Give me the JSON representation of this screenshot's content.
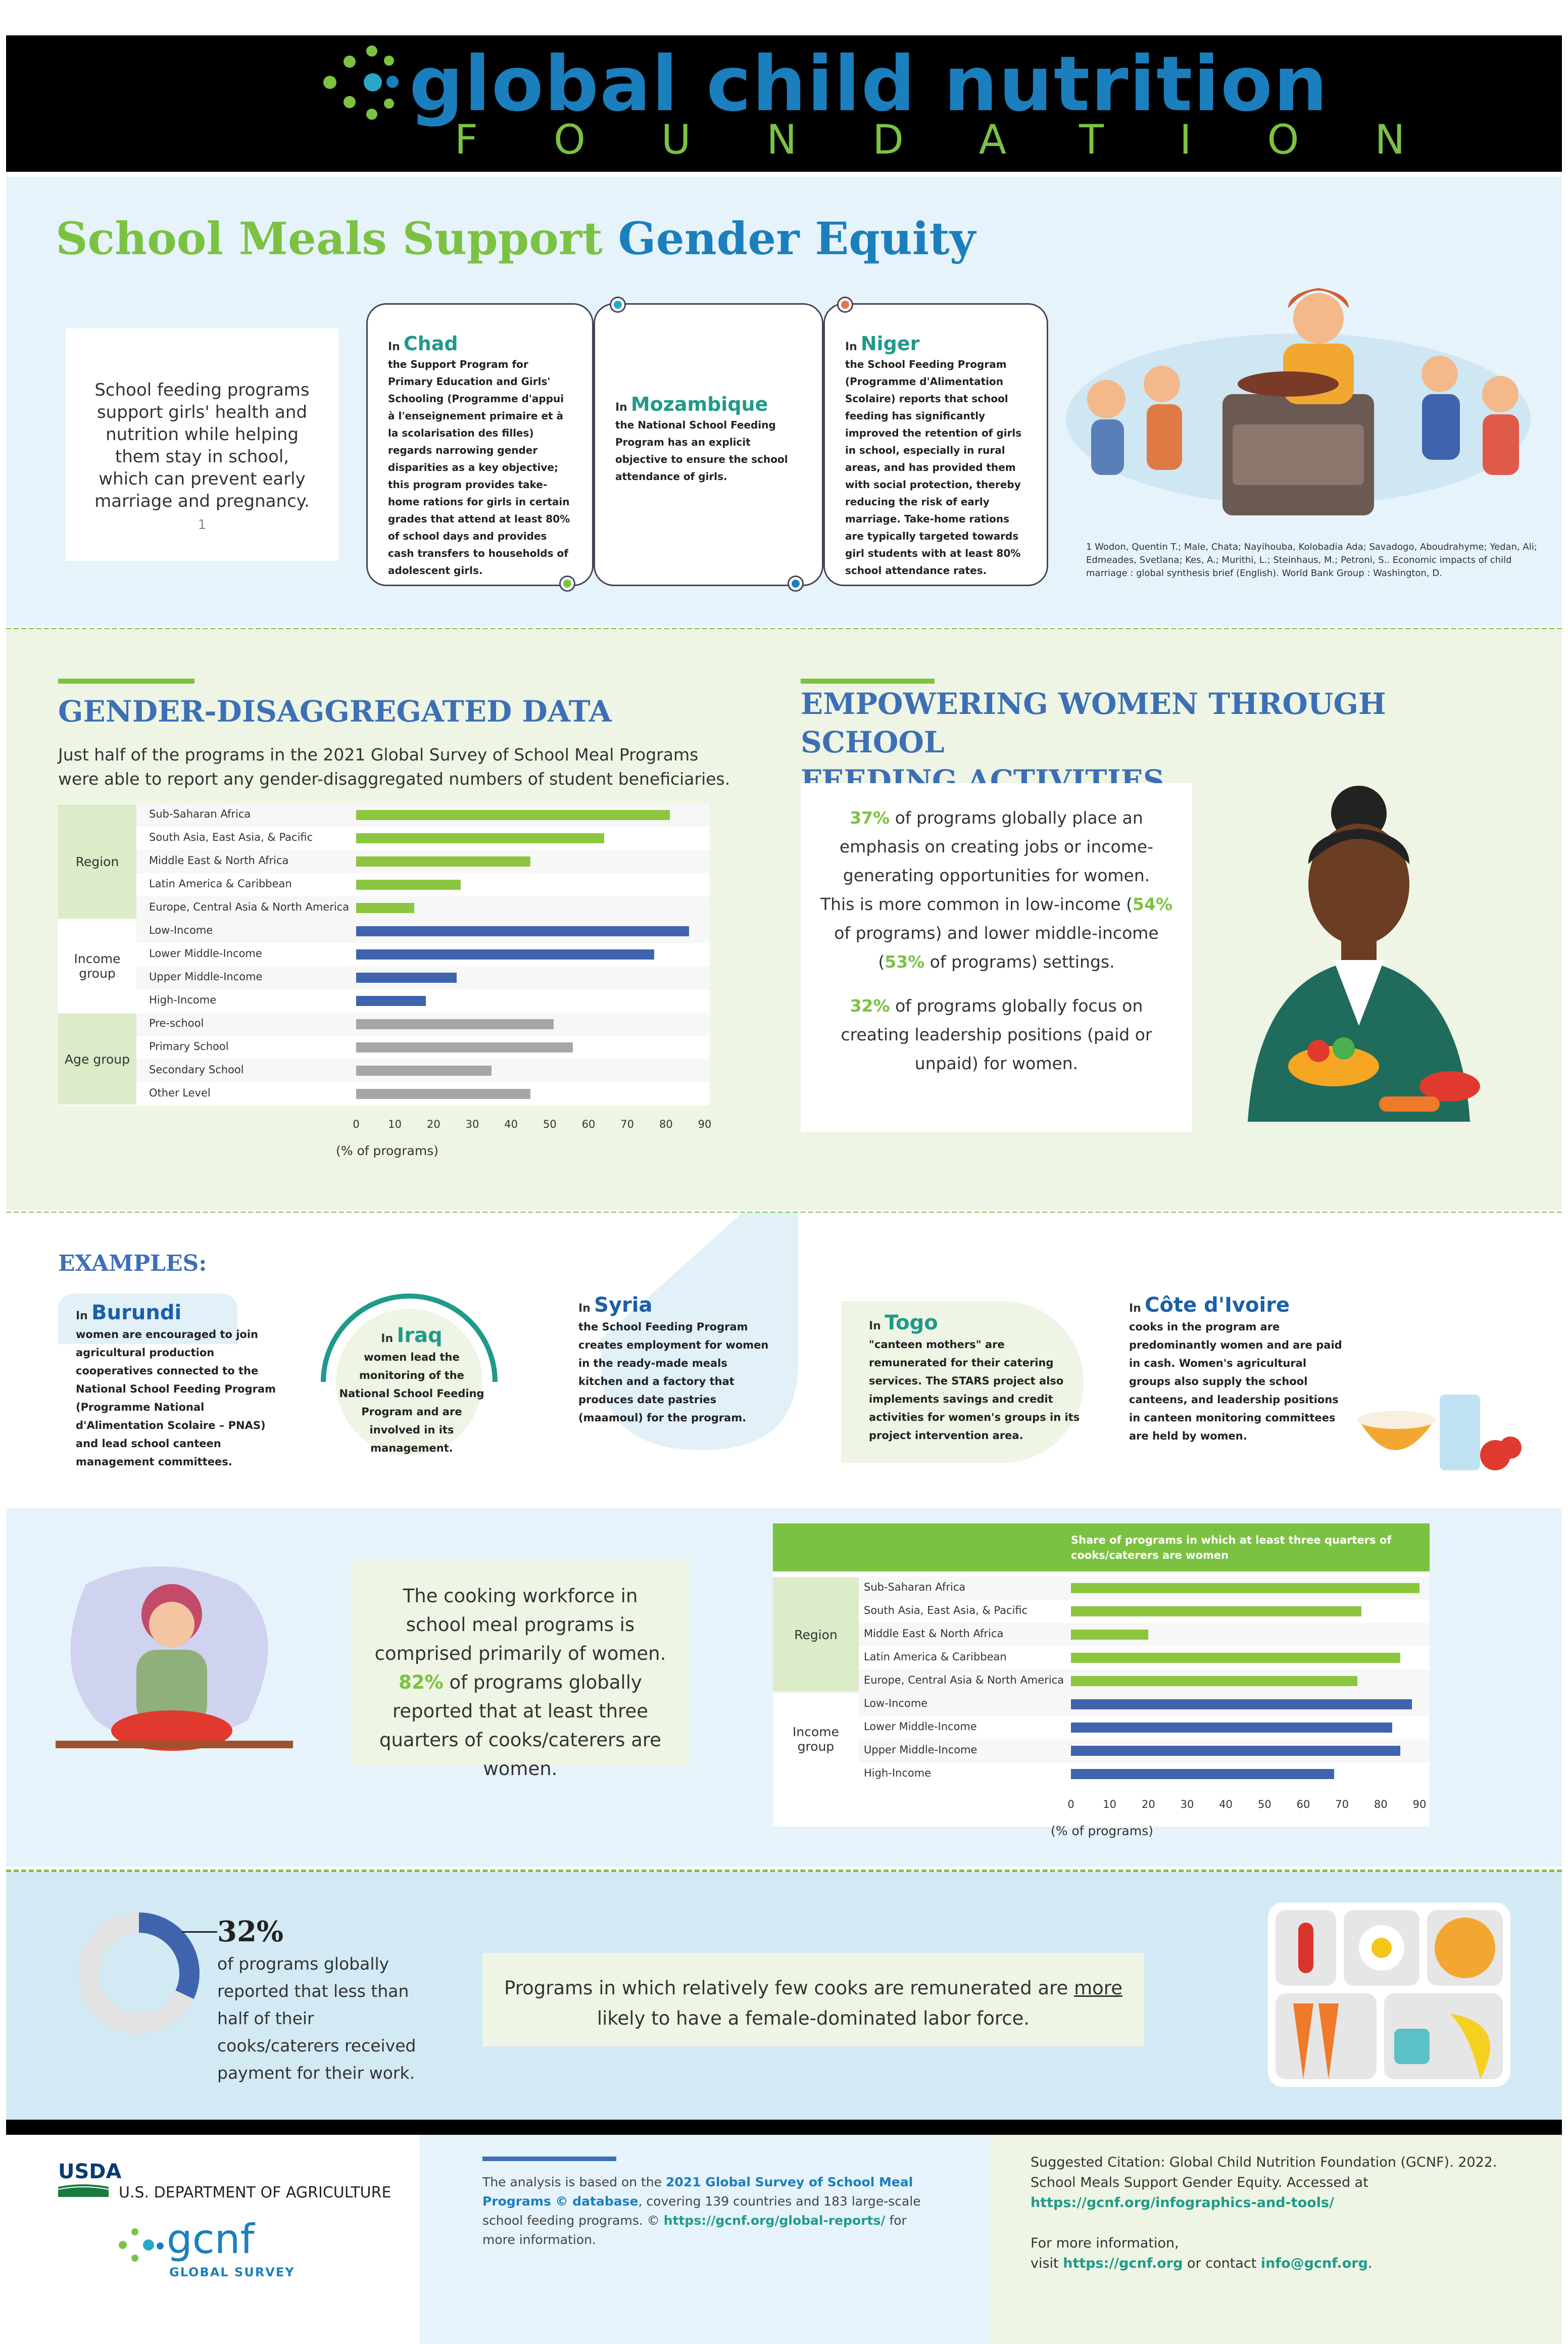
{
  "header": {
    "logo_main": "global child nutrition",
    "logo_sub": "FOUNDATION"
  },
  "intro": {
    "title_green": "School Meals Support",
    "title_blue": "Gender Equity",
    "box_text": "School feeding programs support girls' health and nutrition while helping them stay in school, which can prevent early marriage and pregnancy.",
    "box_ref": "1",
    "cards": [
      {
        "prefix": "In",
        "country": "Chad",
        "text": "the Support Program for Primary Education and Girls' Schooling (Programme d'appui à l'enseignement primaire et à la scolarisation des filles) regards narrowing gender disparities as a key objective; this program provides take-home rations for girls in certain grades that attend at least 80% of school days and provides cash transfers to households of adolescent girls."
      },
      {
        "prefix": "In",
        "country": "Mozambique",
        "text": "the National School Feeding Program has an explicit objective to ensure the school attendance of girls."
      },
      {
        "prefix": "In",
        "country": "Niger",
        "text": "the School Feeding Program (Programme d'Alimentation Scolaire) reports that school feeding has significantly improved the retention of girls in school, especially in rural areas, and has provided them with social protection, thereby reducing the risk of early marriage. Take-home rations are typically targeted towards girl students with at least 80% school attendance rates."
      }
    ],
    "footnote": "1 Wodon, Quentin T.; Male, Chata; Nayihouba, Kolobadia Ada; Savadogo, Aboudrahyme; Yedan, Ali; Edmeades, Svetlana; Kes, A.; Murithi, L.; Steinhaus, M.; Petroni, S.. Economic impacts of child marriage : global synthesis brief (English). World Bank Group : Washington, D."
  },
  "gender_data": {
    "title": "GENDER-DISAGGREGATED DATA",
    "subtitle": "Just half of the programs in the 2021 Global Survey of School Meal Programs were able to report any gender-disaggregated numbers of student beneficiaries."
  },
  "empowering": {
    "title_line1": "EMPOWERING WOMEN THROUGH SCHOOL",
    "title_line2": "FEEDING ACTIVITIES",
    "p1_pct": "37%",
    "p1_text": " of programs globally place an emphasis on creating jobs or income-generating opportunities for women.",
    "p2_a": "This is more common in low-income (",
    "p2_pct1": "54%",
    "p2_b": " of programs) and lower middle-income (",
    "p2_pct2": "53%",
    "p2_c": " of programs) settings.",
    "p3_pct": "32%",
    "p3_text": " of programs globally focus on creating leadership positions (paid or unpaid) for women."
  },
  "examples": {
    "title": "EXAMPLES:",
    "items": [
      {
        "prefix": "In",
        "country": "Burundi",
        "text": "women are encouraged to join agricultural production cooperatives connected to the National School Feeding Program (Programme National d'Alimentation Scolaire – PNAS) and lead school canteen management committees."
      },
      {
        "prefix": "In",
        "country": "Iraq",
        "text": "women lead the monitoring of the National School Feeding Program and are involved in its management."
      },
      {
        "prefix": "In",
        "country": "Syria",
        "text": "the School Feeding Program creates employment for women in the ready-made meals kitchen and a factory that produces date pastries (maamoul) for the program."
      },
      {
        "prefix": "In",
        "country": "Togo",
        "text": "\"canteen mothers\" are remunerated for their catering services. The STARS project also implements savings and credit activities for women's groups in its project intervention area."
      },
      {
        "prefix": "In",
        "country": "Côte d'Ivoire",
        "text": "cooks in the program are predominantly women and are paid in cash. Women's agricultural groups also supply the school canteens, and leadership positions in canteen monitoring committees are held by women."
      }
    ]
  },
  "cooking": {
    "text_a": "The cooking workforce in school meal programs is comprised primarily of women. ",
    "pct": "82%",
    "text_b": " of programs globally reported that at least three quarters of cooks/caterers are women."
  },
  "remuneration": {
    "donut_pct": "32%",
    "donut_text": "of programs globally reported that less than half of their cooks/caterers received payment for their work.",
    "box_a": "Programs in which relatively few cooks are remunerated are ",
    "box_u": "more",
    "box_b": " likely to have a female-dominated labor force."
  },
  "footer": {
    "usda": "USDA",
    "usda_name": "U.S. DEPARTMENT OF AGRICULTURE",
    "gcnf": "gcnf",
    "gcnf_sub": "GLOBAL SURVEY",
    "analysis_a": "The analysis is based on the ",
    "analysis_b": "2021 Global Survey of School Meal Programs © database",
    "analysis_c": ", covering 139 countries and 183 large-scale school feeding programs. © ",
    "analysis_link": "https://gcnf.org/global-reports/",
    "analysis_d": " for more information.",
    "citation": "Suggested Citation: Global Child Nutrition Foundation (GCNF). 2022. School Meals Support Gender Equity. Accessed at",
    "citation_link": "https://gcnf.org/infographics-and-tools/",
    "more_a": "For more information,",
    "more_b": "visit ",
    "more_link1": "https://gcnf.org",
    "more_c": " or contact ",
    "more_link2": "info@gcnf.org",
    "more_d": "."
  },
  "chart_data": [
    {
      "type": "bar",
      "orientation": "horizontal",
      "groups": [
        {
          "name": "Region",
          "categories": [
            "Sub-Saharan Africa",
            "South Asia, East Asia, & Pacific",
            "Middle East & North Africa",
            "Latin America & Caribbean",
            "Europe, Central Asia & North America"
          ],
          "values": [
            81,
            64,
            45,
            27,
            15
          ],
          "color": "#8cc63f"
        },
        {
          "name": "Income group",
          "categories": [
            "Low-Income",
            "Lower Middle-Income",
            "Upper Middle-Income",
            "High-Income"
          ],
          "values": [
            86,
            77,
            26,
            18
          ],
          "color": "#3f63ad"
        },
        {
          "name": "Age group",
          "categories": [
            "Pre-school",
            "Primary School",
            "Secondary School",
            "Other Level"
          ],
          "values": [
            51,
            56,
            35,
            45
          ],
          "color": "#a6a6a6"
        }
      ],
      "xlabel": "(% of programs)",
      "xlim": [
        0,
        90
      ],
      "xticks": [
        0,
        10,
        20,
        30,
        40,
        50,
        60,
        70,
        80,
        90
      ]
    },
    {
      "type": "bar",
      "orientation": "horizontal",
      "title": "Share of programs in which at least three quarters of cooks/caterers are women",
      "groups": [
        {
          "name": "Region",
          "categories": [
            "Sub-Saharan Africa",
            "South Asia, East Asia, & Pacific",
            "Middle East & North Africa",
            "Latin America & Caribbean",
            "Europe, Central Asia & North America"
          ],
          "values": [
            90,
            75,
            20,
            85,
            74
          ],
          "color": "#8cc63f"
        },
        {
          "name": "Income group",
          "categories": [
            "Low-Income",
            "Lower Middle-Income",
            "Upper Middle-Income",
            "High-Income"
          ],
          "values": [
            88,
            83,
            85,
            68
          ],
          "color": "#3f63ad"
        }
      ],
      "xlabel": "(% of programs)",
      "xlim": [
        0,
        90
      ],
      "xticks": [
        0,
        10,
        20,
        30,
        40,
        50,
        60,
        70,
        80,
        90
      ]
    }
  ],
  "colors": {
    "green": "#7cc242",
    "blue": "#1b7fbd",
    "navy": "#3d6fb6",
    "teal": "#1f9a8a"
  }
}
